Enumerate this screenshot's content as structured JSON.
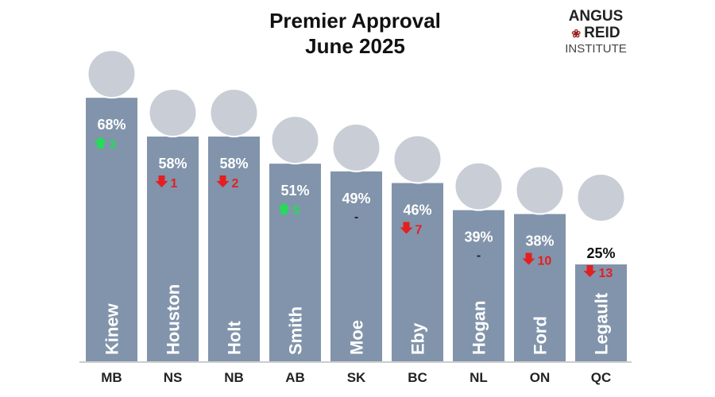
{
  "logo": {
    "line1": "ANGUS",
    "line2": "REID",
    "line3": "INSTITUTE"
  },
  "chart_data": {
    "type": "bar",
    "title": "Premier Approval",
    "subtitle": "June 2025",
    "categories": [
      "MB",
      "NS",
      "NB",
      "AB",
      "SK",
      "BC",
      "NL",
      "ON",
      "QC"
    ],
    "names": [
      "Kinew",
      "Houston",
      "Holt",
      "Smith",
      "Moe",
      "Eby",
      "Hogan",
      "Ford",
      "Legault"
    ],
    "values": [
      68,
      58,
      58,
      51,
      49,
      46,
      39,
      38,
      25
    ],
    "labels": [
      "68%",
      "58%",
      "58%",
      "51%",
      "49%",
      "46%",
      "39%",
      "38%",
      "25%"
    ],
    "changes": [
      3,
      -1,
      -2,
      5,
      0,
      -7,
      0,
      -10,
      -13
    ],
    "change_labels": [
      "3",
      "1",
      "2",
      "5",
      "-",
      "7",
      "-",
      "10",
      "13"
    ],
    "ylim": [
      0,
      70
    ],
    "grid": false,
    "colors": {
      "bar": "#8194ab",
      "up": "#22dd55",
      "down": "#e32020",
      "photo": "#c9ced6"
    }
  }
}
